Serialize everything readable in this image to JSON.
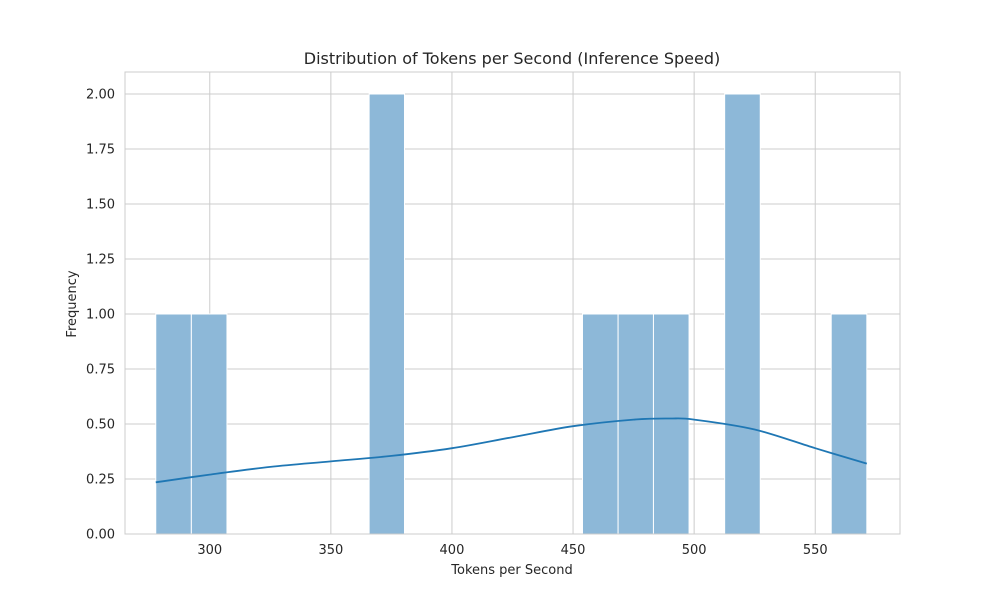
{
  "chart_data": {
    "type": "bar",
    "title": "Distribution of Tokens per Second (Inference Speed)",
    "xlabel": "Tokens per Second",
    "ylabel": "Frequency",
    "xlim": [
      265,
      585
    ],
    "ylim": [
      0,
      2.1
    ],
    "grid": true,
    "x_ticks": [
      300,
      350,
      400,
      450,
      500,
      550
    ],
    "y_ticks": [
      "0.00",
      "0.25",
      "0.50",
      "0.75",
      "1.00",
      "1.25",
      "1.50",
      "1.75",
      "2.00"
    ],
    "bin_width": 14.68,
    "bins": [
      {
        "x0": 277.7,
        "x1": 292.4,
        "count": 1
      },
      {
        "x0": 292.4,
        "x1": 307.1,
        "count": 1
      },
      {
        "x0": 365.8,
        "x1": 380.4,
        "count": 2
      },
      {
        "x0": 453.9,
        "x1": 468.6,
        "count": 1
      },
      {
        "x0": 468.6,
        "x1": 483.2,
        "count": 1
      },
      {
        "x0": 483.2,
        "x1": 497.9,
        "count": 1
      },
      {
        "x0": 512.6,
        "x1": 527.3,
        "count": 2
      },
      {
        "x0": 556.6,
        "x1": 571.3,
        "count": 1
      }
    ],
    "kde": {
      "x": [
        277.7,
        300,
        325,
        350,
        375,
        400,
        425,
        450,
        475,
        490,
        500,
        525,
        550,
        571.3
      ],
      "y": [
        0.235,
        0.27,
        0.305,
        0.33,
        0.355,
        0.39,
        0.44,
        0.49,
        0.52,
        0.525,
        0.52,
        0.475,
        0.39,
        0.32
      ]
    },
    "colors": {
      "bar_fill": "#8db8d8",
      "bar_edge": "#ffffff",
      "kde_line": "#1f77b4",
      "grid": "#cccccc",
      "frame": "#cccccc"
    }
  }
}
